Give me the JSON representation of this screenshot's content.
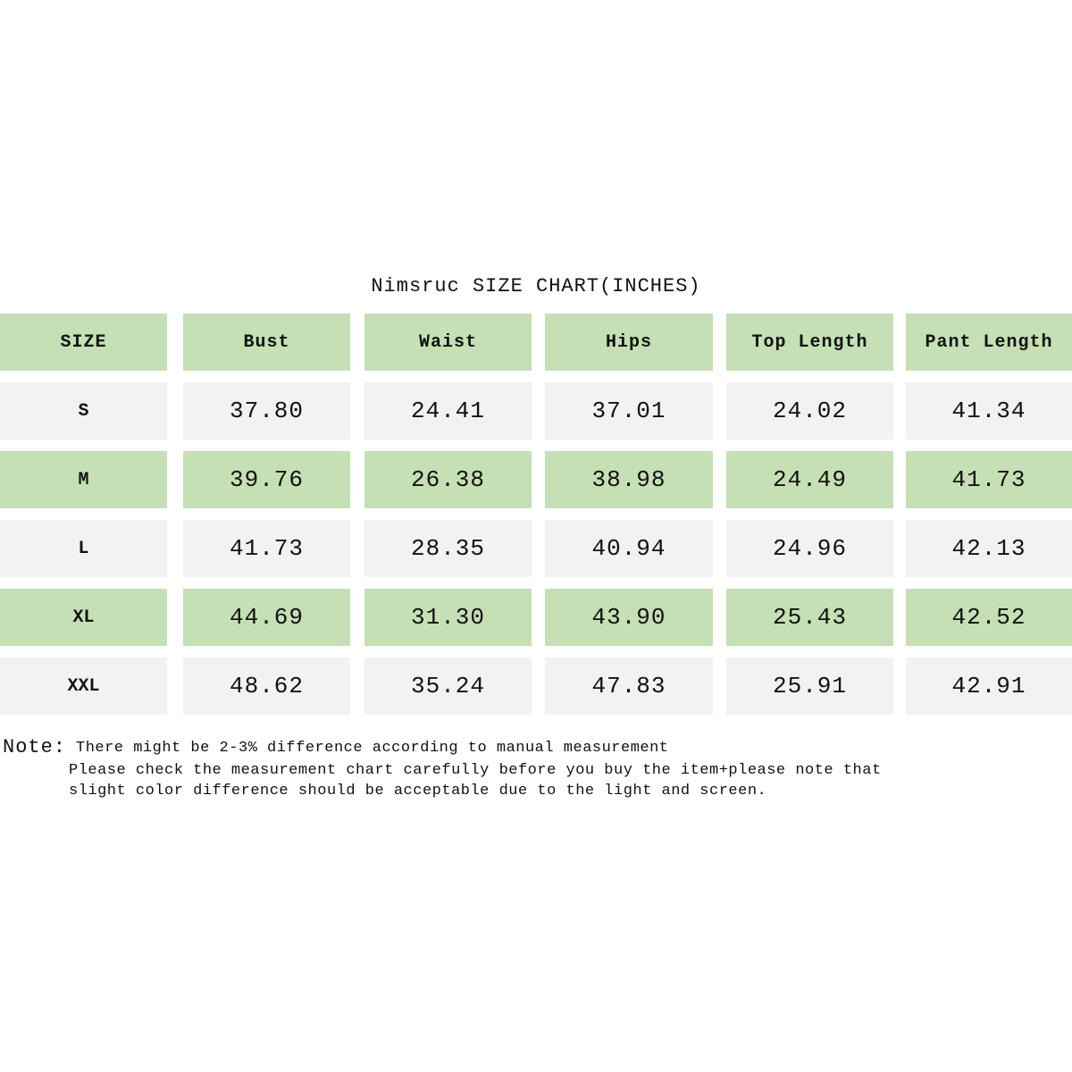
{
  "title": "Nimsruc SIZE CHART(INCHES)",
  "table": {
    "header": [
      "SIZE",
      "Bust",
      "Waist",
      "Hips",
      "Top Length",
      "Pant Length"
    ],
    "rows": [
      [
        "S",
        "37.80",
        "24.41",
        "37.01",
        "24.02",
        "41.34"
      ],
      [
        "M",
        "39.76",
        "26.38",
        "38.98",
        "24.49",
        "41.73"
      ],
      [
        "L",
        "41.73",
        "28.35",
        "40.94",
        "24.96",
        "42.13"
      ],
      [
        "XL",
        "44.69",
        "31.30",
        "43.90",
        "25.43",
        "42.52"
      ],
      [
        "XXL",
        "48.62",
        "35.24",
        "47.83",
        "25.91",
        "42.91"
      ]
    ]
  },
  "note": {
    "label": "Note:",
    "lines": [
      "There might be 2-3% difference according to manual measurement",
      "Please check the measurement chart carefully before you buy the item+please note that",
      "slight color difference should be acceptable due to the light and screen."
    ]
  }
}
